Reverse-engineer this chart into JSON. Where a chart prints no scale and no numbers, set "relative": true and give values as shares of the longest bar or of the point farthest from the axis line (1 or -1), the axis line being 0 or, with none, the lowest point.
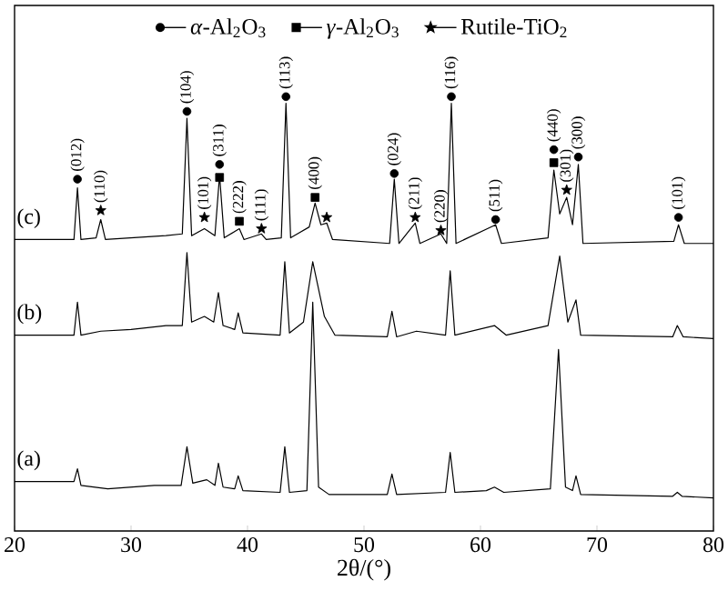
{
  "chart_data": {
    "type": "line",
    "xlabel": "2θ/(°)",
    "relative": true,
    "xlim": [
      20,
      80
    ],
    "xticks": [
      20,
      30,
      40,
      50,
      60,
      70,
      80
    ],
    "legend": "top",
    "series": [
      {
        "name": "(a)",
        "color": "#000000",
        "x": [
          20,
          25.1,
          25.4,
          25.7,
          28,
          32,
          34.3,
          34.8,
          35.3,
          36.5,
          37.2,
          37.5,
          37.9,
          38.9,
          39.2,
          39.6,
          42.8,
          43.2,
          43.6,
          45.1,
          45.6,
          46.1,
          47,
          52,
          52.4,
          52.8,
          57,
          57.4,
          57.8,
          60.5,
          61.2,
          62,
          66,
          66.7,
          67.3,
          67.9,
          68.2,
          68.6,
          76.5,
          76.9,
          77.3,
          80
        ],
        "values": [
          0.114,
          0.114,
          0.143,
          0.105,
          0.097,
          0.105,
          0.105,
          0.194,
          0.11,
          0.118,
          0.105,
          0.156,
          0.101,
          0.097,
          0.127,
          0.093,
          0.089,
          0.194,
          0.089,
          0.093,
          0.527,
          0.101,
          0.084,
          0.084,
          0.131,
          0.084,
          0.089,
          0.181,
          0.089,
          0.093,
          0.101,
          0.089,
          0.097,
          0.418,
          0.101,
          0.093,
          0.127,
          0.084,
          0.08,
          0.089,
          0.08,
          0.076
        ]
      },
      {
        "name": "(b)",
        "color": "#000000",
        "x": [
          20,
          25.1,
          25.4,
          25.7,
          27.4,
          30,
          33,
          34.4,
          34.8,
          35.2,
          36.3,
          37.1,
          37.5,
          37.9,
          38.9,
          39.2,
          39.6,
          42.8,
          43.2,
          43.6,
          44.8,
          45.6,
          46.6,
          47.5,
          52,
          52.4,
          52.8,
          54.5,
          57,
          57.4,
          57.8,
          61.2,
          62.2,
          65.8,
          66.8,
          67.5,
          68.2,
          68.6,
          76.5,
          76.9,
          77.4,
          80
        ],
        "values": [
          0.451,
          0.451,
          0.527,
          0.451,
          0.46,
          0.464,
          0.473,
          0.473,
          0.641,
          0.481,
          0.494,
          0.481,
          0.549,
          0.473,
          0.464,
          0.502,
          0.456,
          0.451,
          0.62,
          0.456,
          0.481,
          0.62,
          0.494,
          0.451,
          0.447,
          0.506,
          0.447,
          0.46,
          0.451,
          0.599,
          0.451,
          0.473,
          0.451,
          0.473,
          0.633,
          0.481,
          0.532,
          0.451,
          0.447,
          0.473,
          0.447,
          0.443
        ]
      },
      {
        "name": "(c)",
        "color": "#000000",
        "x": [
          20,
          25.1,
          25.4,
          25.7,
          27,
          27.4,
          27.8,
          33,
          34.4,
          34.8,
          35.2,
          36.3,
          37.2,
          37.6,
          38,
          39.3,
          39.7,
          41.2,
          41.6,
          42.9,
          43.3,
          43.7,
          45.3,
          45.8,
          46.3,
          46.8,
          47.3,
          52.2,
          52.6,
          53,
          54.4,
          54.8,
          56.6,
          57.1,
          57.5,
          57.9,
          61.3,
          61.8,
          65.8,
          66.3,
          66.8,
          67.4,
          67.9,
          68.4,
          68.8,
          76.6,
          77,
          77.5,
          80
        ],
        "values": [
          0.671,
          0.671,
          0.79,
          0.671,
          0.675,
          0.717,
          0.671,
          0.68,
          0.684,
          0.95,
          0.68,
          0.696,
          0.68,
          0.819,
          0.675,
          0.696,
          0.671,
          0.684,
          0.671,
          0.675,
          0.985,
          0.675,
          0.7,
          0.755,
          0.705,
          0.709,
          0.671,
          0.662,
          0.81,
          0.662,
          0.709,
          0.662,
          0.684,
          0.662,
          0.985,
          0.662,
          0.705,
          0.662,
          0.675,
          0.831,
          0.73,
          0.768,
          0.705,
          0.844,
          0.662,
          0.667,
          0.705,
          0.662,
          0.662
        ]
      },
      {
        "name": "*α*-Al$_{2}$O$_{3}$",
        "type": "scatter",
        "marker": "circle",
        "color": "#000000",
        "x": [
          25.4,
          34.8,
          37.6,
          43.3,
          52.6,
          57.5,
          61.3,
          66.3,
          68.4,
          77
        ],
        "values": [
          0.81,
          0.966,
          0.844,
          1.0,
          0.823,
          1.0,
          0.717,
          0.878,
          0.861,
          0.722
        ]
      },
      {
        "name": "*γ*-Al$_{2}$O$_{3}$",
        "type": "scatter",
        "marker": "square",
        "color": "#000000",
        "x": [
          37.6,
          39.3,
          45.8,
          66.3
        ],
        "values": [
          0.814,
          0.713,
          0.768,
          0.848
        ]
      },
      {
        "name": "Rutile-TiO$_{2}$",
        "type": "scatter",
        "marker": "star",
        "color": "#000000",
        "x": [
          27.4,
          36.3,
          41.2,
          46.8,
          54.4,
          56.6,
          67.4
        ],
        "values": [
          0.738,
          0.722,
          0.696,
          0.722,
          0.722,
          0.692,
          0.785
        ]
      }
    ],
    "annotations": [
      {
        "text": "(012)",
        "x": 25.4,
        "y": 0.81
      },
      {
        "text": "(110)",
        "x": 27.4,
        "y": 0.738
      },
      {
        "text": "(104)",
        "x": 34.8,
        "y": 0.966
      },
      {
        "text": "(101)",
        "x": 36.3,
        "y": 0.722
      },
      {
        "text": "(311)",
        "x": 37.6,
        "y": 0.844
      },
      {
        "text": "(222)",
        "x": 39.3,
        "y": 0.713
      },
      {
        "text": "(111)",
        "x": 41.2,
        "y": 0.696
      },
      {
        "text": "(113)",
        "x": 43.3,
        "y": 1.0
      },
      {
        "text": "(400)",
        "x": 45.8,
        "y": 0.768
      },
      {
        "text": "(024)",
        "x": 52.6,
        "y": 0.823
      },
      {
        "text": "(211)",
        "x": 54.4,
        "y": 0.722
      },
      {
        "text": "(220)",
        "x": 56.6,
        "y": 0.692
      },
      {
        "text": "(116)",
        "x": 57.5,
        "y": 1.0
      },
      {
        "text": "(511)",
        "x": 61.3,
        "y": 0.717
      },
      {
        "text": "(440)",
        "x": 66.3,
        "y": 0.878
      },
      {
        "text": "(301)",
        "x": 67.4,
        "y": 0.785
      },
      {
        "text": "(300)",
        "x": 68.4,
        "y": 0.861
      },
      {
        "text": "(101)",
        "x": 77,
        "y": 0.722
      }
    ]
  }
}
